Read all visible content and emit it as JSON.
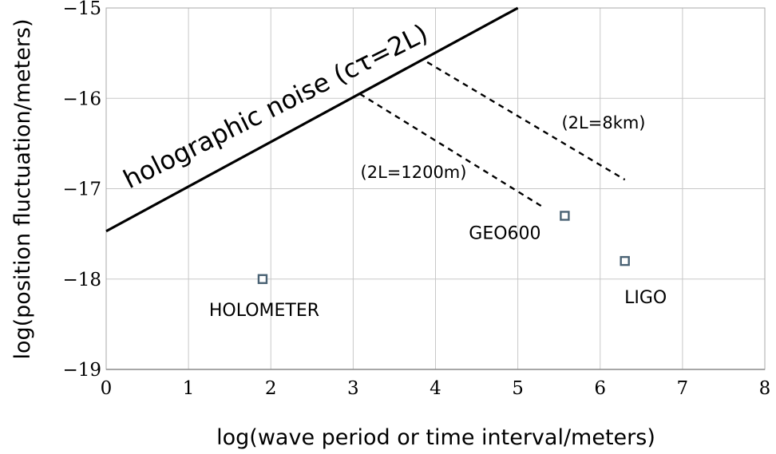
{
  "chart_data": {
    "type": "scatter",
    "xlabel": "log(wave period or time interval/meters)",
    "ylabel": "log(position fluctuation/meters)",
    "xlim": [
      0,
      8
    ],
    "ylim": [
      -19,
      -15
    ],
    "x_ticks": [
      "0",
      "1",
      "2",
      "3",
      "4",
      "5",
      "6",
      "7",
      "8"
    ],
    "y_ticks": [
      "−15",
      "−16",
      "−17",
      "−18",
      "−19"
    ],
    "grid": true,
    "series": [
      {
        "name": "holographic noise (cτ=2L)",
        "style": "solid",
        "x": [
          0,
          5
        ],
        "y": [
          -17.47,
          -15
        ]
      },
      {
        "name": "(2L=1200m)",
        "style": "dashed",
        "x": [
          3.08,
          5.3
        ],
        "y": [
          -15.95,
          -17.2
        ]
      },
      {
        "name": "(2L=8km)",
        "style": "dashed",
        "x": [
          3.9,
          6.3
        ],
        "y": [
          -15.6,
          -16.9
        ]
      }
    ],
    "points": [
      {
        "label": "HOLOMETER",
        "x": 1.9,
        "y": -18.0
      },
      {
        "label": "GEO600",
        "x": 5.57,
        "y": -17.3
      },
      {
        "label": "LIGO",
        "x": 6.3,
        "y": -17.8
      }
    ],
    "colors": {
      "marker_edge": "#4a6274",
      "grid": "#c8c8c8",
      "line": "#000000"
    }
  }
}
